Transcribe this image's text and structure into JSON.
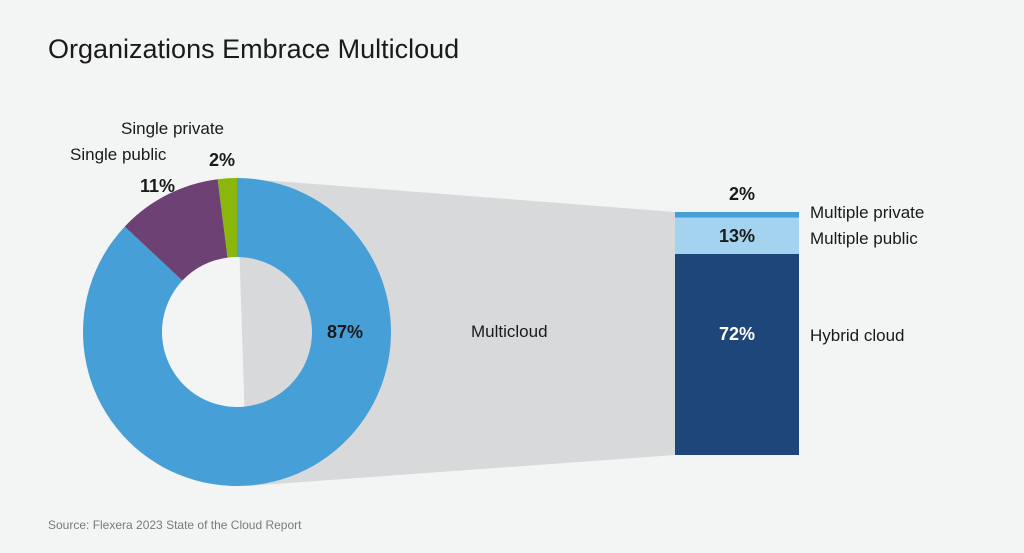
{
  "title": "Organizations Embrace Multicloud",
  "source": "Source: Flexera 2023 State of the Cloud Report",
  "colors": {
    "multicloud": "#479fd8",
    "single_public": "#6e4175",
    "single_private": "#8bb60b",
    "connector": "#d8d9da",
    "hybrid": "#1f4678",
    "multiple_public": "#a3d3ef",
    "multiple_private": "#479fd8"
  },
  "chart_data": [
    {
      "type": "pie",
      "subtype": "donut",
      "slices": [
        {
          "name": "Multicloud",
          "value": 87,
          "label": "87%"
        },
        {
          "name": "Single public",
          "value": 11,
          "label": "11%"
        },
        {
          "name": "Single private",
          "value": 2,
          "label": "2%"
        }
      ]
    },
    {
      "type": "bar",
      "subtype": "stacked",
      "category": "Multicloud",
      "segments": [
        {
          "name": "Hybrid cloud",
          "value": 72,
          "label": "72%"
        },
        {
          "name": "Multiple public",
          "value": 13,
          "label": "13%"
        },
        {
          "name": "Multiple private",
          "value": 2,
          "label": "2%"
        }
      ]
    }
  ]
}
